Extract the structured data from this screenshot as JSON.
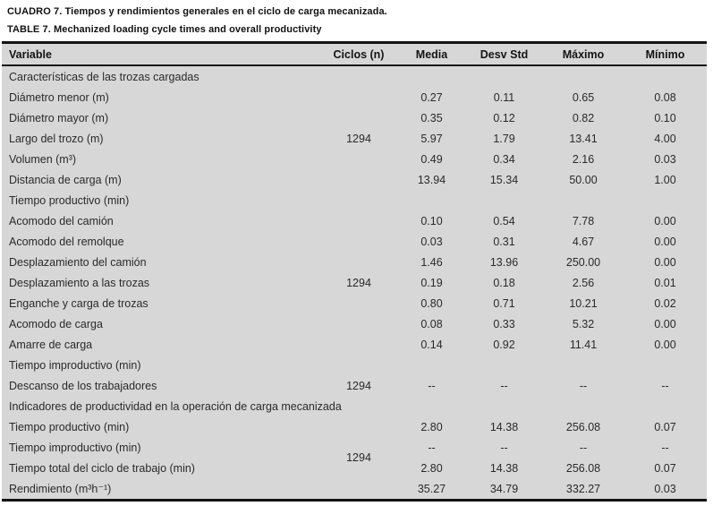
{
  "titles": {
    "spanish": "CUADRO 7. Tiempos y rendimientos generales en el ciclo de carga mecanizada.",
    "english": "TABLE 7. Mechanized loading cycle times and overall productivity"
  },
  "colors": {
    "table_background": "#d7d7d7",
    "border": "#141414",
    "body_text": "#2a2a2a",
    "page_background": "#ffffff"
  },
  "table": {
    "columns": [
      "Variable",
      "Ciclos (n)",
      "Media",
      "Desv Std",
      "Máximo",
      "Mínimo"
    ],
    "rows": [
      {
        "type": "section",
        "label": "Características de las trozas cargadas"
      },
      {
        "type": "data",
        "label": "Diámetro menor (m)",
        "values": [
          "0.27",
          "0.11",
          "0.65",
          "0.08"
        ]
      },
      {
        "type": "data",
        "label": "Diámetro mayor (m)",
        "values": [
          "0.35",
          "0.12",
          "0.82",
          "0.10"
        ]
      },
      {
        "type": "data",
        "label": "Largo del trozo (m)",
        "values": [
          "5.97",
          "1.79",
          "13.41",
          "4.00"
        ]
      },
      {
        "type": "data",
        "label": "Volumen (m³)",
        "values": [
          "0.49",
          "0.34",
          "2.16",
          "0.03"
        ]
      },
      {
        "type": "data",
        "label": "Distancia de carga (m)",
        "values": [
          "13.94",
          "15.34",
          "50.00",
          "1.00"
        ]
      },
      {
        "type": "section",
        "label": "Tiempo productivo (min)"
      },
      {
        "type": "data",
        "label": "Acomodo del camión",
        "values": [
          "0.10",
          "0.54",
          "7.78",
          "0.00"
        ]
      },
      {
        "type": "data",
        "label": "Acomodo del remolque",
        "values": [
          "0.03",
          "0.31",
          "4.67",
          "0.00"
        ]
      },
      {
        "type": "data",
        "label": "Desplazamiento del camión",
        "values": [
          "1.46",
          "13.96",
          "250.00",
          "0.00"
        ]
      },
      {
        "type": "data",
        "label": "Desplazamiento a las trozas",
        "values": [
          "0.19",
          "0.18",
          "2.56",
          "0.01"
        ]
      },
      {
        "type": "data",
        "label": "Enganche y carga de trozas",
        "values": [
          "0.80",
          "0.71",
          "10.21",
          "0.02"
        ]
      },
      {
        "type": "data",
        "label": "Acomodo de carga",
        "values": [
          "0.08",
          "0.33",
          "5.32",
          "0.00"
        ]
      },
      {
        "type": "data",
        "label": "Amarre de carga",
        "values": [
          "0.14",
          "0.92",
          "11.41",
          "0.00"
        ]
      },
      {
        "type": "section",
        "label": "Tiempo improductivo (min)"
      },
      {
        "type": "data",
        "label": "Descanso de los trabajadores",
        "values": [
          "--",
          "--",
          "--",
          "--"
        ]
      },
      {
        "type": "section",
        "label": "Indicadores de productividad en la operación de carga mecanizada"
      },
      {
        "type": "data",
        "label": "Tiempo productivo (min)",
        "values": [
          "2.80",
          "14.38",
          "256.08",
          "0.07"
        ]
      },
      {
        "type": "data",
        "label": "Tiempo improductivo (min)",
        "values": [
          "--",
          "--",
          "--",
          "--"
        ]
      },
      {
        "type": "data",
        "label": "Tiempo total del ciclo de trabajo (min)",
        "values": [
          "2.80",
          "14.38",
          "256.08",
          "0.07"
        ]
      },
      {
        "type": "data",
        "label": "Rendimiento (m³h⁻¹)",
        "values": [
          "35.27",
          "34.79",
          "332.27",
          "0.03"
        ]
      }
    ],
    "ciclos_spans": [
      {
        "value": "1294",
        "from_row": 2,
        "to_row": 6
      },
      {
        "value": "1294",
        "from_row": 8,
        "to_row": 14
      },
      {
        "value": "1294",
        "from_row": 16,
        "to_row": 16
      },
      {
        "value": "1294",
        "from_row": 18,
        "to_row": 21
      }
    ]
  }
}
